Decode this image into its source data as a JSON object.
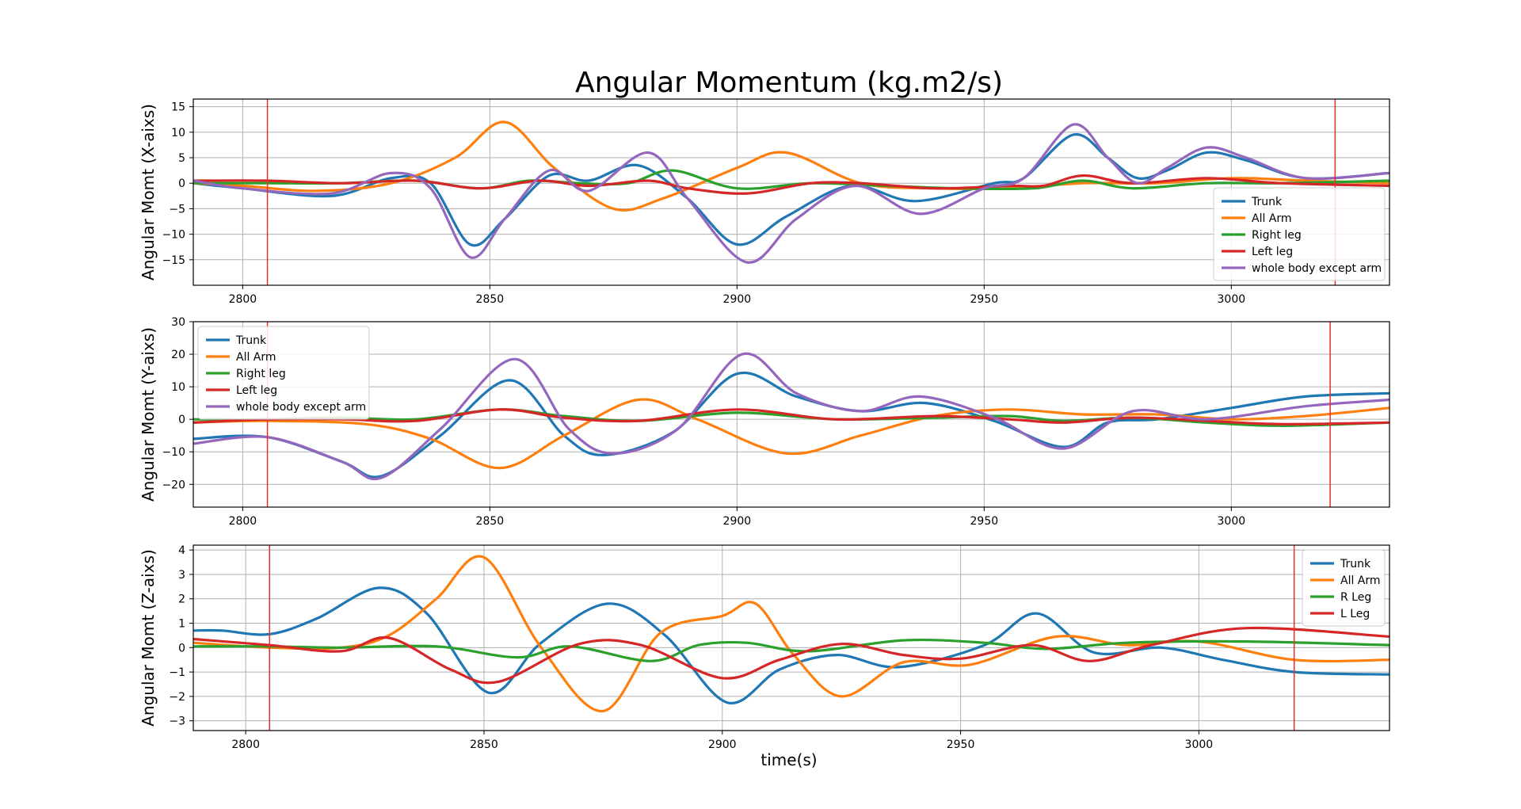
{
  "figure": {
    "title": "Angular Momentum (kg.m2/s)",
    "xlabel": "time(s)"
  },
  "colors": {
    "trunk": "#1f77b4",
    "arm": "#ff7f0e",
    "rleg": "#2ca02c",
    "lleg": "#d62728",
    "body": "#9467bd",
    "marker": "#e8302a",
    "grid": "#b0b0b0"
  },
  "chart_data": [
    {
      "type": "line",
      "title": "",
      "ylabel": "Angular Momt (X-aixs)",
      "xlim": [
        2790,
        3032
      ],
      "ylim": [
        -20,
        16.5
      ],
      "xticks": [
        2800,
        2850,
        2900,
        2950,
        3000
      ],
      "yticks": [
        -15,
        -10,
        -5,
        0,
        5,
        10,
        15
      ],
      "grid": true,
      "legend": "lower-right",
      "vlines": [
        2805,
        3021
      ],
      "series": [
        {
          "name": "Trunk",
          "color": "#1f77b4",
          "x": [
            2790,
            2800,
            2818,
            2830,
            2838,
            2846,
            2853,
            2862,
            2870,
            2880,
            2890,
            2900,
            2910,
            2923,
            2936,
            2952,
            2958,
            2968,
            2975,
            2981,
            2987,
            2995,
            3003,
            3015,
            3032
          ],
          "y": [
            0,
            -1,
            -2.5,
            1,
            0,
            -12,
            -7,
            1.5,
            0.5,
            3.5,
            -3,
            -12,
            -6.5,
            -0.5,
            -3.5,
            0,
            1,
            9.5,
            5,
            1,
            2.5,
            6,
            4.5,
            1,
            2
          ]
        },
        {
          "name": "All Arm",
          "color": "#ff7f0e",
          "x": [
            2790,
            2800,
            2815,
            2830,
            2843,
            2853,
            2863,
            2875,
            2885,
            2900,
            2910,
            2925,
            2940,
            2955,
            2970,
            2985,
            3000,
            3015,
            3032
          ],
          "y": [
            0,
            -0.5,
            -1.5,
            0,
            5,
            12,
            3,
            -5,
            -3,
            3,
            6,
            0,
            -1,
            -1,
            0,
            0,
            1,
            0.5,
            0
          ]
        },
        {
          "name": "Right leg",
          "color": "#2ca02c",
          "x": [
            2790,
            2805,
            2820,
            2835,
            2848,
            2858,
            2868,
            2878,
            2887,
            2900,
            2915,
            2930,
            2945,
            2960,
            2970,
            2980,
            2995,
            3010,
            3032
          ],
          "y": [
            0,
            0,
            0,
            0.5,
            -1,
            0.5,
            0,
            0,
            2.5,
            -1,
            0,
            -0.5,
            -1,
            -1,
            0.5,
            -1,
            0,
            0,
            0.5
          ]
        },
        {
          "name": "Left leg",
          "color": "#d62728",
          "x": [
            2790,
            2805,
            2820,
            2835,
            2848,
            2860,
            2870,
            2882,
            2890,
            2902,
            2915,
            2925,
            2940,
            2955,
            2962,
            2970,
            2980,
            2995,
            3010,
            3032
          ],
          "y": [
            0.5,
            0.5,
            0,
            0.5,
            -1,
            0.5,
            -0.5,
            0.5,
            -1,
            -2,
            0,
            0,
            -1,
            -0.5,
            -0.5,
            1.5,
            0,
            1,
            0,
            -0.5
          ]
        },
        {
          "name": "whole body except arm",
          "color": "#9467bd",
          "x": [
            2790,
            2800,
            2818,
            2830,
            2838,
            2846,
            2853,
            2862,
            2870,
            2882,
            2890,
            2902,
            2912,
            2924,
            2937,
            2950,
            2958,
            2968,
            2975,
            2981,
            2987,
            2995,
            3003,
            3015,
            3032
          ],
          "y": [
            0.5,
            -1,
            -2,
            2,
            -1,
            -14.5,
            -7,
            2.5,
            -1.5,
            6,
            -3,
            -15.5,
            -7,
            -0.5,
            -6,
            -1,
            1,
            11.5,
            5,
            0,
            3,
            7,
            5,
            1,
            2
          ]
        }
      ]
    },
    {
      "type": "line",
      "title": "",
      "ylabel": "Angular Momt (Y-aixs)",
      "xlim": [
        2790,
        3032
      ],
      "ylim": [
        -27,
        30
      ],
      "xticks": [
        2800,
        2850,
        2900,
        2950,
        3000
      ],
      "yticks": [
        -20,
        -10,
        0,
        10,
        20,
        30
      ],
      "grid": true,
      "legend": "upper-left",
      "vlines": [
        2805,
        3020
      ],
      "series": [
        {
          "name": "Trunk",
          "color": "#1f77b4",
          "x": [
            2790,
            2805,
            2820,
            2828,
            2840,
            2854,
            2865,
            2873,
            2887,
            2900,
            2912,
            2925,
            2938,
            2952,
            2966,
            2975,
            2985,
            3000,
            3015,
            3032
          ],
          "y": [
            -6,
            -5.5,
            -13,
            -17.5,
            -5,
            12,
            -5,
            -11,
            -4,
            14,
            7,
            2.5,
            5,
            -0.5,
            -8.5,
            -1,
            0,
            3.5,
            7,
            8
          ]
        },
        {
          "name": "All Arm",
          "color": "#ff7f0e",
          "x": [
            2790,
            2805,
            2825,
            2838,
            2852,
            2865,
            2880,
            2892,
            2910,
            2925,
            2940,
            2955,
            2970,
            2985,
            3000,
            3015,
            3032
          ],
          "y": [
            -1,
            -0.5,
            -1.5,
            -6,
            -15,
            -5,
            6,
            0,
            -10.5,
            -5,
            1,
            3,
            1.5,
            1.5,
            0,
            1,
            3.5
          ]
        },
        {
          "name": "Right leg",
          "color": "#2ca02c",
          "x": [
            2790,
            2805,
            2820,
            2835,
            2852,
            2865,
            2880,
            2900,
            2920,
            2940,
            2955,
            2966,
            2980,
            2995,
            3010,
            3032
          ],
          "y": [
            0,
            0,
            0.5,
            0,
            3,
            1,
            -0.5,
            2,
            0,
            0.5,
            1,
            -0.5,
            0.5,
            -1,
            -2,
            -1
          ]
        },
        {
          "name": "Left leg",
          "color": "#d62728",
          "x": [
            2790,
            2805,
            2820,
            2835,
            2852,
            2865,
            2880,
            2900,
            2920,
            2940,
            2955,
            2966,
            2980,
            2995,
            3010,
            3032
          ],
          "y": [
            -1,
            0,
            0,
            -0.5,
            3,
            0.5,
            -0.5,
            3,
            0,
            1,
            0,
            -1,
            0.5,
            -0.5,
            -1.5,
            -1
          ]
        },
        {
          "name": "whole body except arm",
          "color": "#9467bd",
          "x": [
            2790,
            2805,
            2820,
            2828,
            2840,
            2855,
            2866,
            2875,
            2888,
            2901,
            2912,
            2925,
            2937,
            2952,
            2966,
            2980,
            2995,
            3015,
            3032
          ],
          "y": [
            -7.5,
            -5.5,
            -13,
            -18,
            -3,
            18.5,
            -3,
            -10.5,
            -3,
            20,
            8,
            2.5,
            7,
            0.5,
            -9,
            2.5,
            0,
            4,
            6
          ]
        }
      ]
    },
    {
      "type": "line",
      "title": "",
      "ylabel": "Angular Momt (Z-aixs)",
      "xlim": [
        2789,
        3040
      ],
      "ylim": [
        -3.4,
        4.2
      ],
      "xticks": [
        2800,
        2850,
        2900,
        2950,
        3000
      ],
      "yticks": [
        -3,
        -2,
        -1,
        0,
        1,
        2,
        3,
        4
      ],
      "grid": true,
      "legend": "upper-right",
      "vlines": [
        2805,
        3020
      ],
      "series": [
        {
          "name": "Trunk",
          "color": "#1f77b4",
          "x": [
            2789,
            2795,
            2805,
            2815,
            2828,
            2838,
            2851,
            2862,
            2876,
            2888,
            2901,
            2912,
            2924,
            2937,
            2955,
            2966,
            2978,
            2992,
            3005,
            3020,
            3040
          ],
          "y": [
            0.7,
            0.7,
            0.55,
            1.2,
            2.45,
            1.4,
            -1.85,
            0.2,
            1.8,
            0.5,
            -2.25,
            -0.9,
            -0.3,
            -0.8,
            0.1,
            1.4,
            -0.2,
            0,
            -0.5,
            -1,
            -1.1
          ]
        },
        {
          "name": "All Arm",
          "color": "#ff7f0e",
          "x": [
            2789,
            2805,
            2820,
            2830,
            2840,
            2850,
            2862,
            2875,
            2887,
            2900,
            2907,
            2915,
            2925,
            2938,
            2952,
            2970,
            2985,
            3000,
            3020,
            3040
          ],
          "y": [
            0.2,
            0,
            0,
            0.5,
            2,
            3.7,
            0,
            -2.6,
            0.6,
            1.3,
            1.8,
            -0.3,
            -2,
            -0.6,
            -0.7,
            0.45,
            0.1,
            0.25,
            -0.5,
            -0.5
          ]
        },
        {
          "name": "R Leg",
          "color": "#2ca02c",
          "x": [
            2789,
            2805,
            2820,
            2840,
            2857,
            2868,
            2885,
            2895,
            2905,
            2918,
            2938,
            2955,
            2968,
            2985,
            3010,
            3040
          ],
          "y": [
            0.05,
            0.05,
            0,
            0.05,
            -0.4,
            0.05,
            -0.55,
            0.1,
            0.2,
            -0.15,
            0.3,
            0.2,
            -0.05,
            0.2,
            0.25,
            0.1
          ]
        },
        {
          "name": "L Leg",
          "color": "#d62728",
          "x": [
            2789,
            2805,
            2820,
            2830,
            2843,
            2853,
            2870,
            2883,
            2900,
            2912,
            2925,
            2938,
            2950,
            2965,
            2977,
            2990,
            3010,
            3040
          ],
          "y": [
            0.35,
            0.1,
            -0.15,
            0.4,
            -0.9,
            -1.4,
            0.15,
            0.1,
            -1.25,
            -0.5,
            0.15,
            -0.3,
            -0.45,
            0.1,
            -0.55,
            0.1,
            0.8,
            0.45
          ]
        }
      ]
    }
  ]
}
